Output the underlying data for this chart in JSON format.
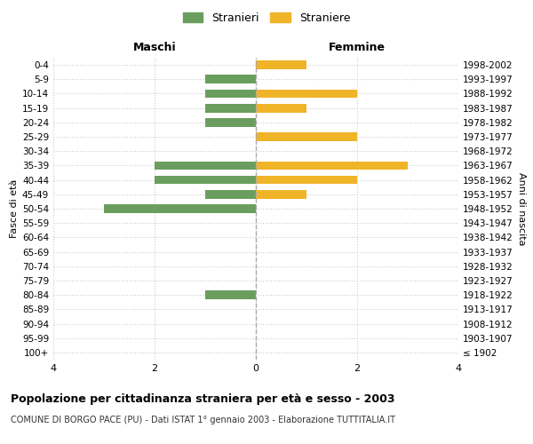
{
  "age_groups": [
    "100+",
    "95-99",
    "90-94",
    "85-89",
    "80-84",
    "75-79",
    "70-74",
    "65-69",
    "60-64",
    "55-59",
    "50-54",
    "45-49",
    "40-44",
    "35-39",
    "30-34",
    "25-29",
    "20-24",
    "15-19",
    "10-14",
    "5-9",
    "0-4"
  ],
  "birth_years": [
    "≤ 1902",
    "1903-1907",
    "1908-1912",
    "1913-1917",
    "1918-1922",
    "1923-1927",
    "1928-1932",
    "1933-1937",
    "1938-1942",
    "1943-1947",
    "1948-1952",
    "1953-1957",
    "1958-1962",
    "1963-1967",
    "1968-1972",
    "1973-1977",
    "1978-1982",
    "1983-1987",
    "1988-1992",
    "1993-1997",
    "1998-2002"
  ],
  "maschi": [
    0,
    0,
    0,
    0,
    1,
    0,
    0,
    0,
    0,
    0,
    3,
    1,
    2,
    2,
    0,
    0,
    1,
    1,
    1,
    1,
    0
  ],
  "femmine": [
    0,
    0,
    0,
    0,
    0,
    0,
    0,
    0,
    0,
    0,
    0,
    1,
    2,
    3,
    0,
    2,
    0,
    1,
    2,
    0,
    1
  ],
  "color_maschi": "#6a9e5e",
  "color_femmine": "#f0b429",
  "title": "Popolazione per cittadinanza straniera per età e sesso - 2003",
  "subtitle": "COMUNE DI BORGO PACE (PU) - Dati ISTAT 1° gennaio 2003 - Elaborazione TUTTITALIA.IT",
  "ylabel_left": "Fasce di età",
  "ylabel_right": "Anni di nascita",
  "label_maschi": "Maschi",
  "label_femmine": "Femmine",
  "legend_stranieri": "Stranieri",
  "legend_straniere": "Straniere",
  "xlim": 4,
  "background_color": "#ffffff",
  "grid_color": "#cccccc"
}
